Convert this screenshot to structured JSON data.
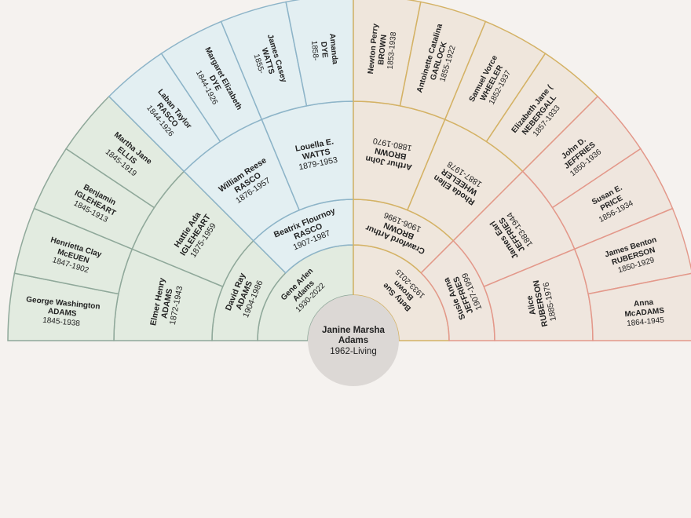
{
  "root": {
    "name_lines": [
      "Janine Marsha",
      "Adams"
    ],
    "dates": "1962-Living"
  },
  "colors": {
    "background": "#f5f2ef",
    "root_circle": "#dcd8d5",
    "blue": {
      "fill": "#e3eff2",
      "stroke": "#8db4c8"
    },
    "green": {
      "fill": "#e2ebe0",
      "stroke": "#8fa89a"
    },
    "gold": {
      "fill": "#efe6dc",
      "stroke": "#d4b265"
    },
    "salmon": {
      "fill": "#efe6de",
      "stroke": "#e3988a"
    }
  },
  "generations": [
    {
      "people": [
        {
          "name_lines": [
            "Gene Arlen",
            "Adams"
          ],
          "dates": "1930-2022"
        },
        {
          "name_lines": [
            "Betty Sue",
            "Brown"
          ],
          "dates": "1933-2015"
        }
      ]
    },
    {
      "people": [
        {
          "name_lines": [
            "David Ray",
            "ADAMS"
          ],
          "dates": "1904-1986"
        },
        {
          "name_lines": [
            "Beatrix Flournoy",
            "RASCO"
          ],
          "dates": "1907-1987"
        },
        {
          "name_lines": [
            "Crawford Arthur",
            "BROWN"
          ],
          "dates": "1906-1996"
        },
        {
          "name_lines": [
            "Susie Anna",
            "JEFFRIES"
          ],
          "dates": "1907-1999"
        }
      ]
    },
    {
      "people": [
        {
          "name_lines": [
            "Elmer Henry",
            "ADAMS"
          ],
          "dates": "1872-1943"
        },
        {
          "name_lines": [
            "Hattie Ada",
            "IGLEHEART"
          ],
          "dates": "1875-1959"
        },
        {
          "name_lines": [
            "William Reese",
            "RASCO"
          ],
          "dates": "1876-1957"
        },
        {
          "name_lines": [
            "Louella E.",
            "WATTS"
          ],
          "dates": "1879-1953"
        },
        {
          "name_lines": [
            "Arthur John",
            "BROWN"
          ],
          "dates": "1880-1970"
        },
        {
          "name_lines": [
            "Rhoda Ellen",
            "WHEELER"
          ],
          "dates": "1887-1978"
        },
        {
          "name_lines": [
            "James Earl",
            "JEFFRIES"
          ],
          "dates": "1883-1944"
        },
        {
          "name_lines": [
            "Alice",
            "RUBERSON"
          ],
          "dates": "1885-1976"
        }
      ]
    },
    {
      "people": [
        {
          "name_lines": [
            "George Washington",
            "ADAMS"
          ],
          "dates": "1845-1938"
        },
        {
          "name_lines": [
            "Henrietta Clay",
            "McEUEN"
          ],
          "dates": "1847-1902"
        },
        {
          "name_lines": [
            "Benjamin",
            "IGLEHEART"
          ],
          "dates": "1845-1913"
        },
        {
          "name_lines": [
            "Martha Jane",
            "ELLIS"
          ],
          "dates": "1845-1919"
        },
        {
          "name_lines": [
            "Laban Taylor",
            "RASCO"
          ],
          "dates": "1844-1926"
        },
        {
          "name_lines": [
            "Margaret Elizabeth",
            "DYE"
          ],
          "dates": "1844-1926"
        },
        {
          "name_lines": [
            "James Casey",
            "WATTS"
          ],
          "dates": "1855-"
        },
        {
          "name_lines": [
            "Amanda",
            "DYE"
          ],
          "dates": "1858-"
        },
        {
          "name_lines": [
            "Newton Perry",
            "BROWN"
          ],
          "dates": "1853-1938"
        },
        {
          "name_lines": [
            "Antoinette Catalina",
            "GARLOCK"
          ],
          "dates": "1855-1922"
        },
        {
          "name_lines": [
            "Samuel Vorce",
            "WHEELER"
          ],
          "dates": "1852-1937"
        },
        {
          "name_lines": [
            "Elizabeth Jane (",
            "NEBERGALL"
          ],
          "dates": "1857-1933"
        },
        {
          "name_lines": [
            "John D.",
            "JEFFRIES"
          ],
          "dates": "1850-1936"
        },
        {
          "name_lines": [
            "Susan E.",
            "PRICE"
          ],
          "dates": "1856-1934"
        },
        {
          "name_lines": [
            "James Benton",
            "RUBERSON"
          ],
          "dates": "1850-1929"
        },
        {
          "name_lines": [
            "Anna",
            "McADAMS"
          ],
          "dates": "1864-1945"
        }
      ]
    }
  ]
}
